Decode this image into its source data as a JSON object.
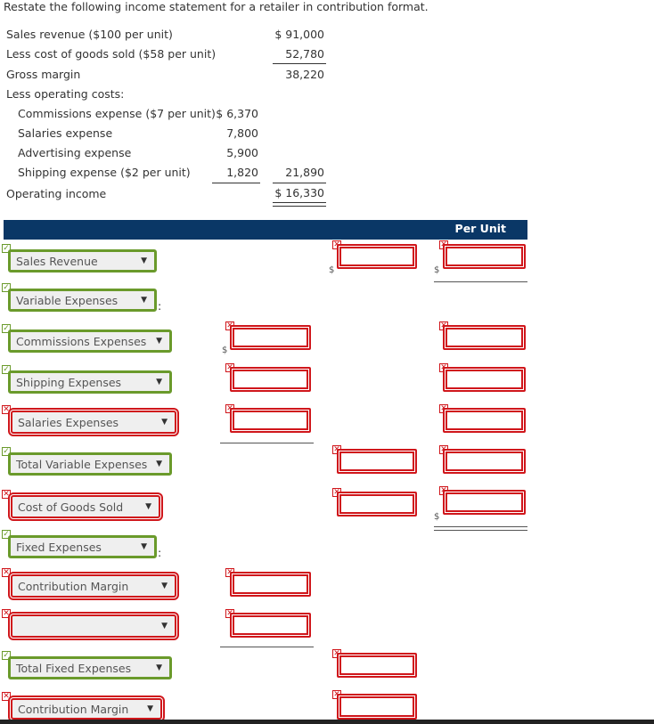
{
  "instructions": "Restate the following income statement for a retailer in contribution format.",
  "statement": {
    "rows": [
      {
        "label": "Sales revenue ($100 per unit)",
        "col1": "",
        "col2": "$ 91,000"
      },
      {
        "label": "Less cost of goods sold ($58 per unit)",
        "col1": "",
        "col2": "52,780"
      },
      {
        "label": "Gross margin",
        "col1": "",
        "col2": "38,220"
      },
      {
        "label": "Less operating costs:",
        "col1": "",
        "col2": ""
      },
      {
        "label": "Commissions expense ($7 per unit)",
        "col1": "$ 6,370",
        "col2": ""
      },
      {
        "label": "Salaries expense",
        "col1": "7,800",
        "col2": ""
      },
      {
        "label": "Advertising expense",
        "col1": "5,900",
        "col2": ""
      },
      {
        "label": "Shipping expense ($2 per unit)",
        "col1": "1,820",
        "col2": "21,890"
      },
      {
        "label": "Operating income",
        "col1": "",
        "col2": "$ 16,330"
      }
    ]
  },
  "header": {
    "per_unit": "Per Unit"
  },
  "currency": "$",
  "colon": ":",
  "answers": [
    {
      "dropdown": "Sales Revenue",
      "dropdown_status": "correct"
    },
    {
      "dropdown": "Variable Expenses",
      "dropdown_status": "correct"
    },
    {
      "dropdown": "Commissions Expenses",
      "dropdown_status": "correct"
    },
    {
      "dropdown": "Shipping Expenses",
      "dropdown_status": "correct"
    },
    {
      "dropdown": "Salaries Expenses",
      "dropdown_status": "incorrect"
    },
    {
      "dropdown": "Total Variable Expenses",
      "dropdown_status": "correct"
    },
    {
      "dropdown": "Cost of Goods Sold",
      "dropdown_status": "incorrect"
    },
    {
      "dropdown": "Fixed Expenses",
      "dropdown_status": "correct"
    },
    {
      "dropdown": "Contribution Margin",
      "dropdown_status": "incorrect"
    },
    {
      "dropdown": "",
      "dropdown_status": "incorrect"
    },
    {
      "dropdown": "Total Fixed Expenses",
      "dropdown_status": "correct"
    },
    {
      "dropdown": "Contribution Margin",
      "dropdown_status": "incorrect"
    }
  ],
  "colors": {
    "correct": "#6a9a2b",
    "incorrect": "#d0161b",
    "band": "#0a3766"
  },
  "icons": {
    "correct": "check-icon",
    "incorrect": "x-icon",
    "caret": "caret-down-icon"
  }
}
